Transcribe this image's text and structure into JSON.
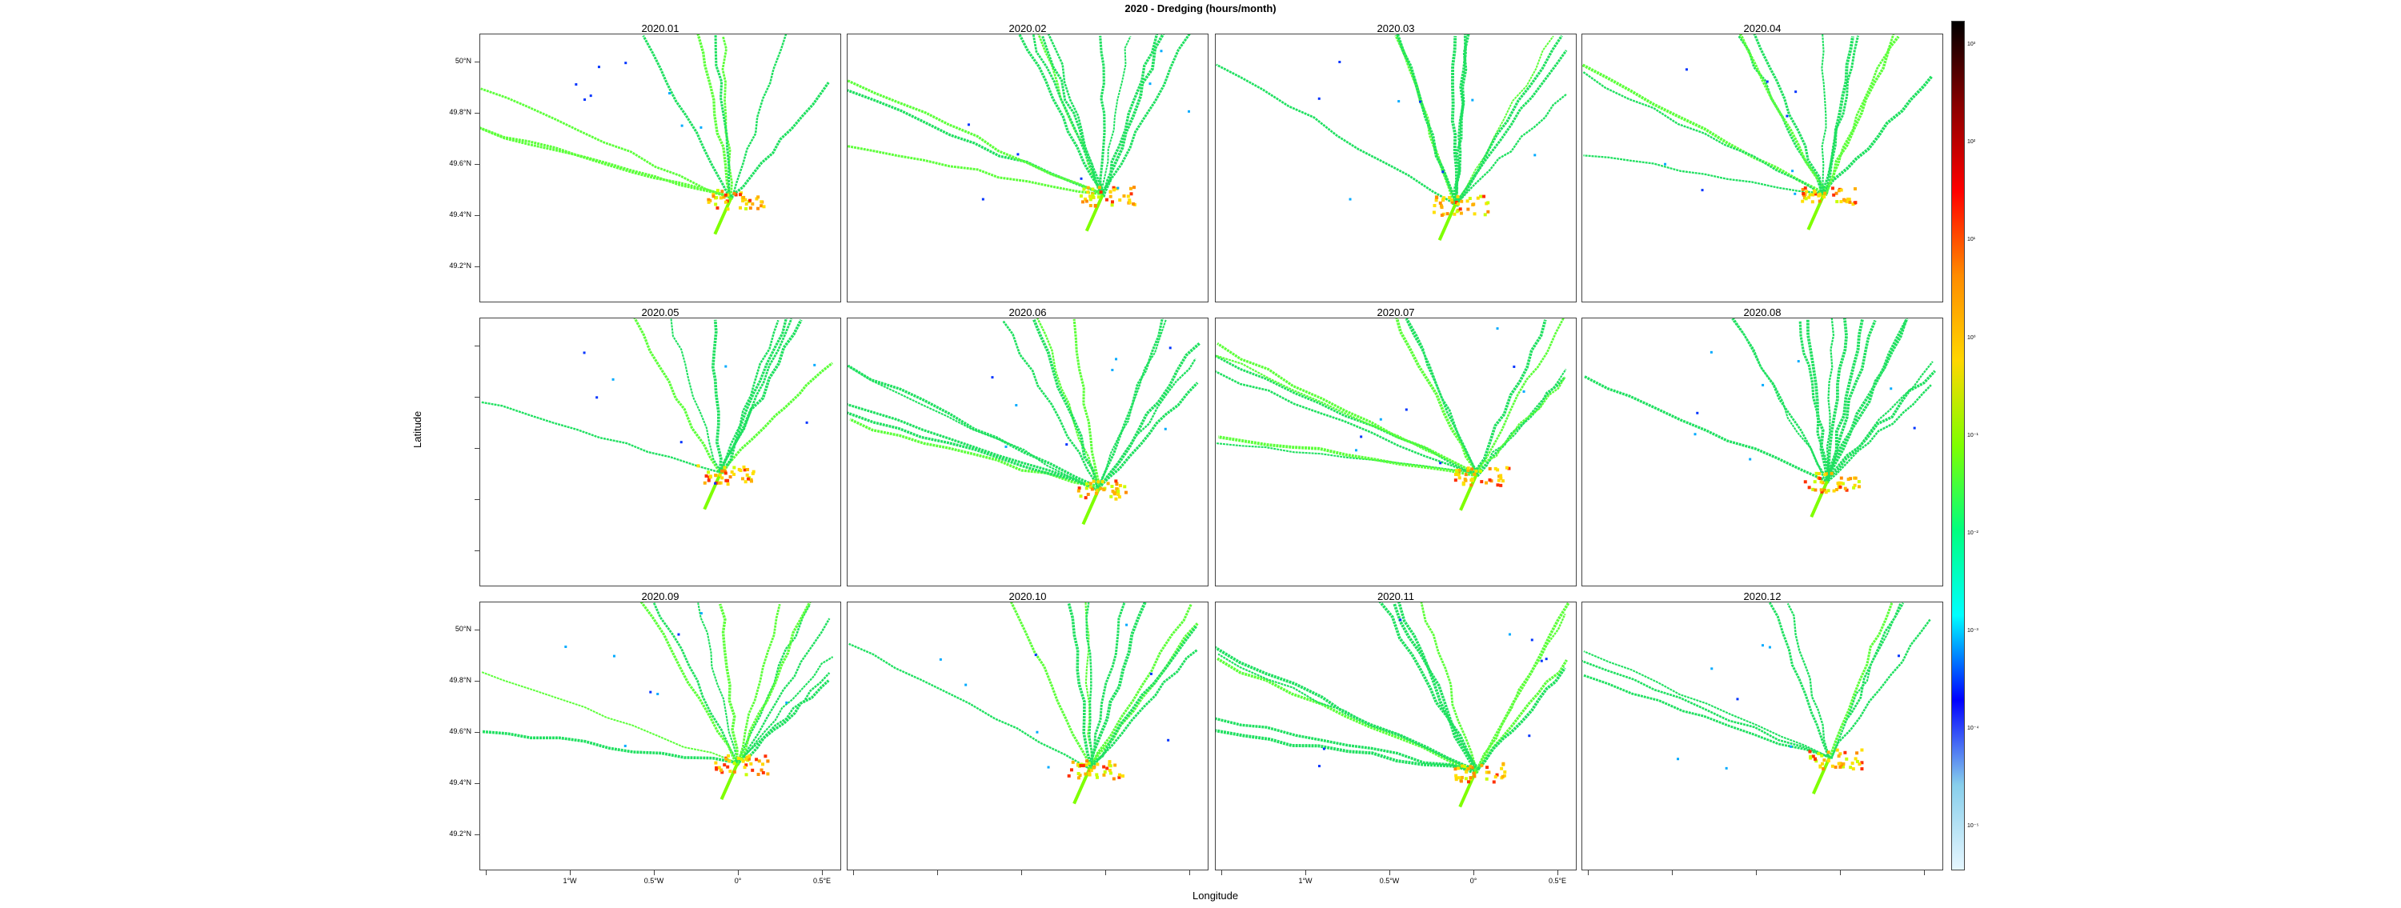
{
  "title": "2020 - Dredging (hours/month)",
  "x_axis_title": "Longitude",
  "y_axis_title": "Latitude",
  "lat_labels": [
    "50°N",
    "49.8°N",
    "49.6°N",
    "49.4°N",
    "49.2°N"
  ],
  "lon_labels": [
    "1°W",
    "0.5°W",
    "0°",
    "0.5°E"
  ],
  "colorbar": {
    "labels": [
      "10³",
      "10²",
      "10¹",
      "10⁰",
      "10⁻¹",
      "10⁻²",
      "10⁻³",
      "10⁻⁴",
      "10⁻⁵"
    ],
    "colors": [
      "#000000",
      "#8b0000",
      "#ff0000",
      "#ff8c00",
      "#ffd700",
      "#7fff00",
      "#00ff7f",
      "#00ffff",
      "#0000ff",
      "#87ceeb",
      "#e6f7ff"
    ]
  },
  "panels": [
    {
      "label": "2020.01"
    },
    {
      "label": "2020.02"
    },
    {
      "label": "2020.03"
    },
    {
      "label": "2020.04"
    },
    {
      "label": "2020.05"
    },
    {
      "label": "2020.06"
    },
    {
      "label": "2020.07"
    },
    {
      "label": "2020.08"
    },
    {
      "label": "2020.09"
    },
    {
      "label": "2020.10"
    },
    {
      "label": "2020.11"
    },
    {
      "label": "2020.12"
    }
  ]
}
